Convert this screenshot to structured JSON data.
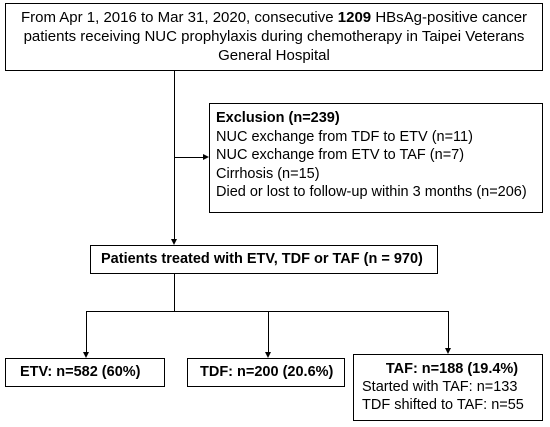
{
  "top_box": {
    "text_pre": "From Apr 1, 2016 to Mar 31, 2020, consecutive ",
    "text_bold": "1209",
    "text_post": " HBsAg-positive cancer patients receiving NUC prophylaxis during chemotherapy in Taipei Veterans General Hospital"
  },
  "exclusion": {
    "title": "Exclusion (n=239)",
    "items": [
      "NUC exchange from TDF to ETV (n=11)",
      "NUC exchange from ETV to TAF (n=7)",
      "Cirrhosis (n=15)",
      "Died or lost to follow-up within 3 months (n=206)"
    ]
  },
  "patients": {
    "label": "Patients treated with ETV, TDF or TAF (n = 970)"
  },
  "groups": {
    "etv": {
      "label": "ETV: n=582 (60%)"
    },
    "tdf": {
      "label": "TDF: n=200 (20.6%)"
    },
    "taf": {
      "label": "TAF: n=188 (19.4%)",
      "details": [
        "Started with TAF: n=133",
        "TDF shifted to TAF: n=55"
      ]
    }
  }
}
